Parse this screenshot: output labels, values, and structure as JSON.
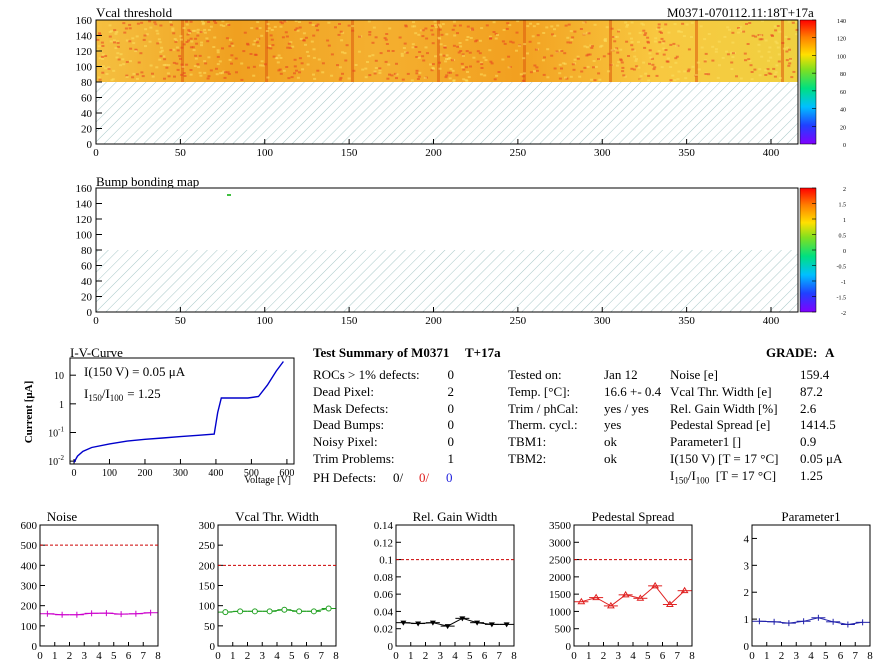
{
  "header": {
    "map_title": "Vcal threshold",
    "module_id": "M0371-070112.11:18T+17a",
    "bump_title": "Bump bonding map"
  },
  "colors": {
    "hist_red": "#e02020",
    "hist_green": "#20a020",
    "hist_black": "#000000",
    "hist_magenta": "#cc00cc",
    "hist_blue": "#2020aa",
    "iv_line": "#0000cc"
  },
  "iv": {
    "title": "I-V-Curve",
    "ylabel": "Current [μA]",
    "xlabel": "Voltage [V]",
    "annot_current": "I(150 V) = 0.05 μA",
    "annot_ratio_sub1": "150",
    "annot_ratio_sub2": "100",
    "annot_ratio_value": "= 1.25"
  },
  "summary": {
    "title": "Test Summary of M0371",
    "tag": "T+17a",
    "grade_label": "GRADE:",
    "grade": "A",
    "left_rows": [
      {
        "label": "ROCs > 1% defects:",
        "value": "0"
      },
      {
        "label": "Dead Pixel:",
        "value": "2"
      },
      {
        "label": "Mask Defects:",
        "value": "0"
      },
      {
        "label": "Dead Bumps:",
        "value": "0"
      },
      {
        "label": "Noisy Pixel:",
        "value": "0"
      },
      {
        "label": "Trim Problems:",
        "value": "1"
      }
    ],
    "ph_label": "PH Defects:",
    "ph_values": [
      "0/",
      "0/",
      "0"
    ],
    "mid_rows": [
      {
        "label": "Tested on:",
        "value": "Jan 12"
      },
      {
        "label": "Temp. [°C]:",
        "value": "16.6 +- 0.4"
      },
      {
        "label": "Trim / phCal:",
        "value": "yes / yes"
      },
      {
        "label": "Therm. cycl.:",
        "value": "yes"
      },
      {
        "label": "TBM1:",
        "value": "ok"
      },
      {
        "label": "TBM2:",
        "value": "ok"
      }
    ],
    "right_rows": [
      {
        "label": "Noise [e]",
        "value": "159.4"
      },
      {
        "label": "Vcal Thr. Width [e]",
        "value": "87.2"
      },
      {
        "label": "Rel. Gain Width [%]",
        "value": "2.6"
      },
      {
        "label": "Pedestal Spread [e]",
        "value": "1414.5"
      },
      {
        "label": "Parameter1 []",
        "value": "0.9"
      },
      {
        "label": "I(150 V) [T = 17 °C]",
        "value": "0.05 μA"
      }
    ],
    "ratio_row": {
      "sub1": "150",
      "sub2": "100",
      "label_tail": "[T = 17 °C]",
      "value": "1.25"
    }
  },
  "chart_data": [
    {
      "type": "heatmap",
      "title": "Vcal threshold",
      "x_range": [
        0,
        416
      ],
      "y_range": [
        0,
        160
      ],
      "xticks": [
        0,
        50,
        100,
        150,
        200,
        250,
        300,
        350,
        400
      ],
      "yticks": [
        0,
        20,
        40,
        60,
        80,
        100,
        120,
        140,
        160
      ],
      "filled_rows": [
        80,
        160
      ],
      "color_scale": [
        0,
        140
      ],
      "color_ticks": [
        0,
        20,
        40,
        60,
        80,
        100,
        120,
        140
      ]
    },
    {
      "type": "heatmap",
      "title": "Bump bonding map",
      "x_range": [
        0,
        416
      ],
      "y_range": [
        0,
        160
      ],
      "xticks": [
        0,
        50,
        100,
        150,
        200,
        250,
        300,
        350,
        400
      ],
      "yticks": [
        0,
        20,
        40,
        60,
        80,
        100,
        120,
        140,
        160
      ],
      "filled_rows": [
        80,
        160
      ],
      "color_scale": [
        -2,
        2
      ],
      "color_ticks": [
        -2,
        -1.5,
        -1,
        -0.5,
        0,
        0.5,
        1,
        1.5,
        2
      ]
    },
    {
      "type": "line",
      "title": "I-V-Curve",
      "xlabel": "Voltage [V]",
      "ylabel": "Current [μA]",
      "xlim": [
        0,
        620
      ],
      "xticks": [
        0,
        100,
        200,
        300,
        400,
        500,
        600
      ],
      "ylog": true,
      "yticks": [
        "10^-2",
        "10^-1",
        "1",
        "10"
      ],
      "x": [
        0,
        10,
        25,
        50,
        100,
        150,
        200,
        250,
        300,
        350,
        395,
        405,
        415,
        450,
        490,
        520,
        545,
        570,
        590
      ],
      "y": [
        0.009,
        0.015,
        0.022,
        0.03,
        0.04,
        0.05,
        0.058,
        0.064,
        0.072,
        0.08,
        0.088,
        0.5,
        1.6,
        1.6,
        1.6,
        1.8,
        4.5,
        14,
        30
      ]
    },
    {
      "type": "line",
      "title": "Noise",
      "xlim": [
        0,
        8
      ],
      "ylim": [
        0,
        600
      ],
      "yticks": [
        0,
        100,
        200,
        300,
        400,
        500,
        600
      ],
      "reference_line": 500,
      "x": [
        0.5,
        1.5,
        2.5,
        3.5,
        4.5,
        5.5,
        6.5,
        7.5
      ],
      "values": [
        160,
        155,
        155,
        162,
        163,
        158,
        160,
        165
      ]
    },
    {
      "type": "line",
      "title": "Vcal Thr. Width",
      "xlim": [
        0,
        8
      ],
      "ylim": [
        0,
        300
      ],
      "yticks": [
        0,
        50,
        100,
        150,
        200,
        250,
        300
      ],
      "reference_line": 200,
      "x": [
        0.5,
        1.5,
        2.5,
        3.5,
        4.5,
        5.5,
        6.5,
        7.5
      ],
      "values": [
        84,
        86,
        86,
        86,
        90,
        86,
        86,
        93
      ]
    },
    {
      "type": "line",
      "title": "Rel. Gain Width",
      "xlim": [
        0,
        8
      ],
      "ylim": [
        0,
        0.14
      ],
      "yticks": [
        0,
        0.02,
        0.04,
        0.06,
        0.08,
        0.1,
        0.12,
        0.14
      ],
      "reference_line": 0.1,
      "x": [
        0.5,
        1.5,
        2.5,
        3.5,
        4.5,
        5.5,
        6.5,
        7.5
      ],
      "values": [
        0.027,
        0.026,
        0.027,
        0.023,
        0.032,
        0.027,
        0.025,
        0.025
      ]
    },
    {
      "type": "line",
      "title": "Pedestal Spread",
      "xlim": [
        0,
        8
      ],
      "ylim": [
        0,
        3500
      ],
      "yticks": [
        0,
        500,
        1000,
        1500,
        2000,
        2500,
        3000,
        3500
      ],
      "reference_line": 2500,
      "x": [
        0.5,
        1.5,
        2.5,
        3.5,
        4.5,
        5.5,
        6.5,
        7.5
      ],
      "values": [
        1280,
        1400,
        1160,
        1480,
        1380,
        1740,
        1200,
        1600
      ]
    },
    {
      "type": "line",
      "title": "Parameter1",
      "xlim": [
        0,
        8
      ],
      "ylim": [
        0,
        4.5
      ],
      "yticks": [
        0,
        1,
        2,
        3,
        4
      ],
      "x": [
        0.5,
        1.5,
        2.5,
        3.5,
        4.5,
        5.5,
        6.5,
        7.5
      ],
      "values": [
        0.92,
        0.9,
        0.85,
        0.92,
        1.05,
        0.9,
        0.8,
        0.88
      ]
    }
  ]
}
